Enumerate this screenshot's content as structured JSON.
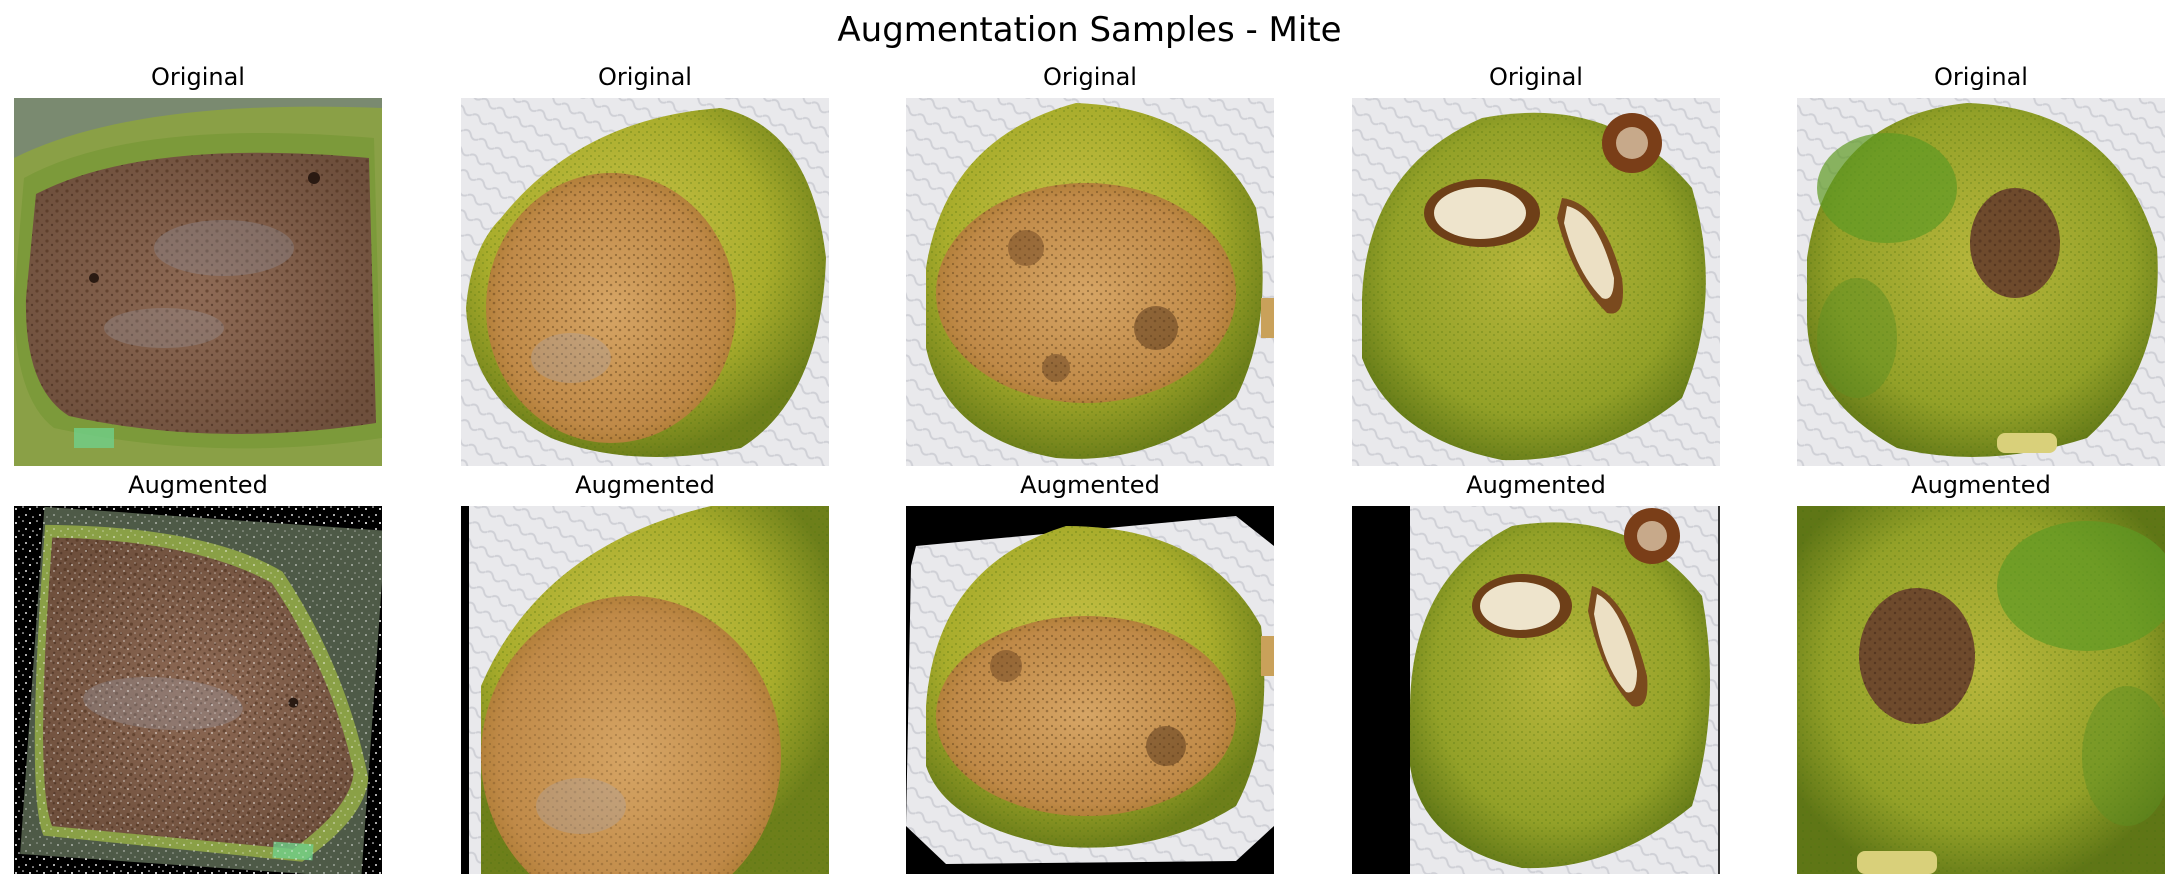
{
  "figure": {
    "title": "Augmentation Samples - Mite",
    "row_titles": {
      "original": "Original",
      "augmented": "Augmented"
    },
    "columns": [
      {
        "original": {
          "title": "Original",
          "subject": "sliced fruit with brown speckled mite damage"
        },
        "augmented": {
          "title": "Augmented",
          "subject": "rotated, flipped with salt-and-pepper noise"
        }
      },
      {
        "original": {
          "title": "Original",
          "subject": "green-yellow fruit with large tan mite lesion"
        },
        "augmented": {
          "title": "Augmented",
          "subject": "zoomed and blurred with black left strip"
        }
      },
      {
        "original": {
          "title": "Original",
          "subject": "yellow fruit with tan lesion and dark spots"
        },
        "augmented": {
          "title": "Augmented",
          "subject": "rotated with black corners"
        }
      },
      {
        "original": {
          "title": "Original",
          "subject": "green fruit with two pale cracked lesions"
        },
        "augmented": {
          "title": "Augmented",
          "subject": "shifted right with black left band"
        }
      },
      {
        "original": {
          "title": "Original",
          "subject": "green fruit with dark brown scab spot"
        },
        "augmented": {
          "title": "Augmented",
          "subject": "horizontally flipped and zoomed"
        }
      }
    ]
  }
}
